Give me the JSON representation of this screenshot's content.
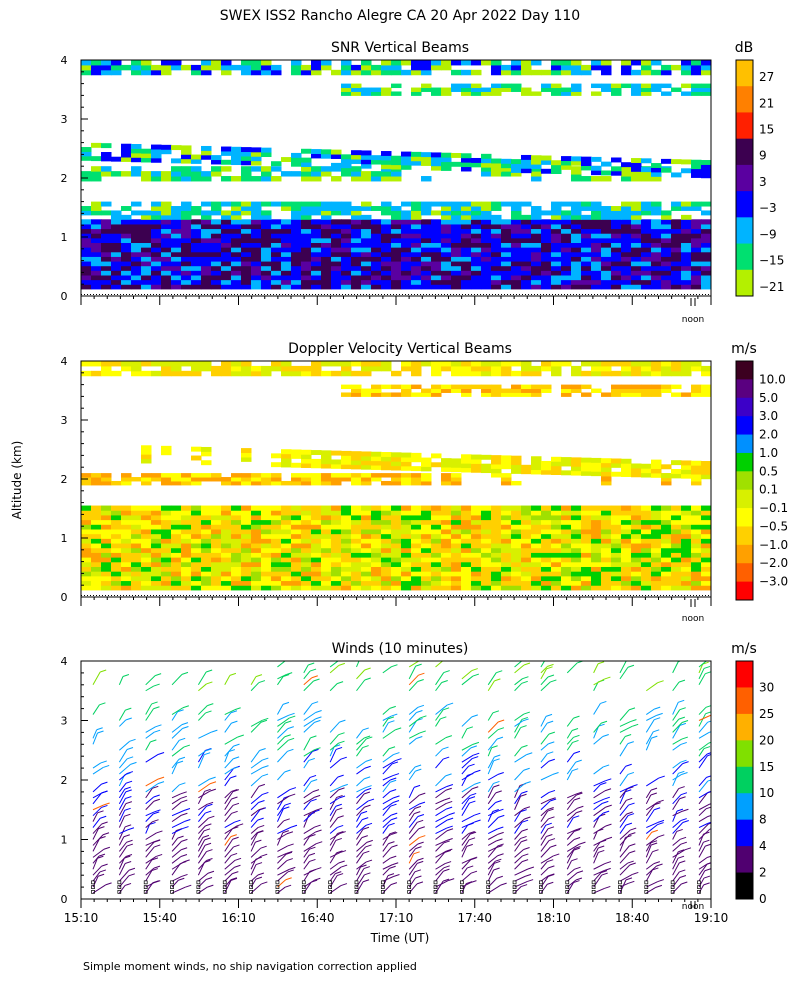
{
  "title": "SWEX ISS2 Rancho Alegre CA  20 Apr 2022 Day 110",
  "ylabel": "Altitude (km)",
  "xlabel": "Time (UT)",
  "noon_label": "noon",
  "footnote": "Simple moment winds, no ship navigation correction applied",
  "chart_data": [
    {
      "type": "heatmap",
      "title": "SNR Vertical Beams",
      "unit": "dB",
      "ylim": [
        0,
        4
      ],
      "yticks": [
        "0",
        "1",
        "2",
        "3",
        "4"
      ],
      "colorbar": {
        "labels": [
          "27",
          "21",
          "15",
          "9",
          "3",
          "−3",
          "−9",
          "−15",
          "−21"
        ],
        "colors": [
          "#ffc000",
          "#ff8000",
          "#ff2000",
          "#3c0050",
          "#5a00a0",
          "#0000ff",
          "#00b4ff",
          "#00e070",
          "#b4f000"
        ]
      }
    },
    {
      "type": "heatmap",
      "title": "Doppler Velocity Vertical Beams",
      "unit": "m/s",
      "ylim": [
        0,
        4
      ],
      "yticks": [
        "0",
        "1",
        "2",
        "3",
        "4"
      ],
      "colorbar": {
        "labels": [
          "10.0",
          "5.0",
          "3.0",
          "2.0",
          "1.0",
          "0.5",
          "0.1",
          "−0.1",
          "−0.5",
          "−1.0",
          "−2.0",
          "−3.0"
        ],
        "colors": [
          "#3c0020",
          "#5a0080",
          "#3c00c8",
          "#0000ff",
          "#0090ff",
          "#00d000",
          "#a0e000",
          "#d8f000",
          "#ffff00",
          "#ffd000",
          "#ffa000",
          "#ff6000",
          "#ff0000"
        ]
      }
    },
    {
      "type": "scatter",
      "title": "Winds (10 minutes)",
      "unit": "m/s",
      "ylim": [
        0,
        4
      ],
      "yticks": [
        "0",
        "1",
        "2",
        "3",
        "4"
      ],
      "x": [
        "15:10",
        "15:40",
        "16:10",
        "16:40",
        "17:10",
        "17:40",
        "18:10",
        "18:40",
        "19:10"
      ],
      "colorbar": {
        "labels": [
          "30",
          "25",
          "20",
          "15",
          "10",
          "8",
          "4",
          "2",
          "0"
        ],
        "colors": [
          "#ff0000",
          "#ff6000",
          "#ffb000",
          "#80e000",
          "#00d060",
          "#00a0ff",
          "#0000ff",
          "#500070",
          "#000000"
        ]
      }
    }
  ]
}
